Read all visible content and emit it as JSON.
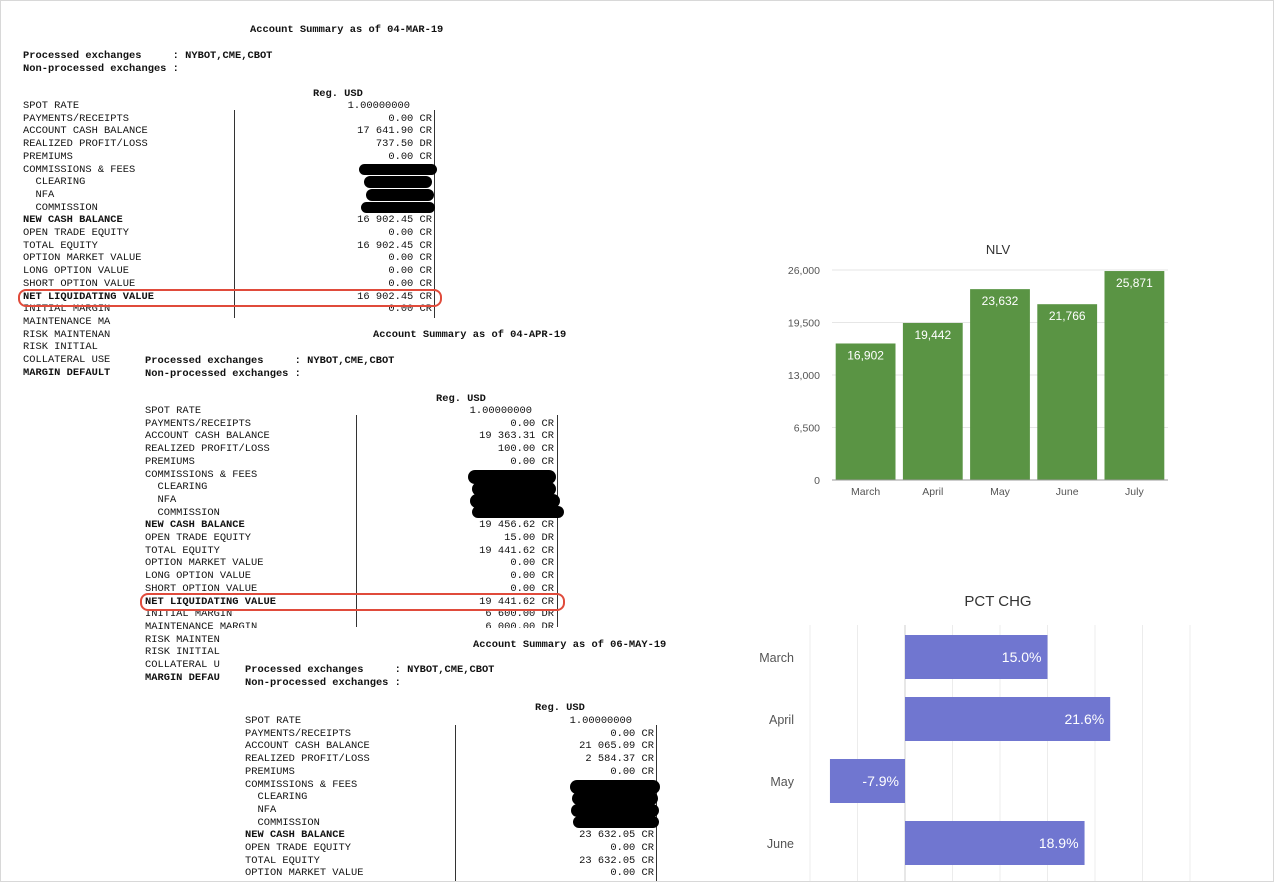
{
  "statements": [
    {
      "id": "mar",
      "title": "Account Summary as of 04-MAR-19",
      "processed": "Processed exchanges     : NYBOT,CME,CBOT",
      "nonprocessed": "Non-processed exchanges :",
      "currency_header": "Reg. USD",
      "spot_rate_value": "1.00000000",
      "rows": [
        {
          "label": "SPOT RATE",
          "value": ""
        },
        {
          "label": "PAYMENTS/RECEIPTS",
          "value": "0.00 CR"
        },
        {
          "label": "ACCOUNT CASH BALANCE",
          "value": "17 641.90 CR"
        },
        {
          "label": "REALIZED PROFIT/LOSS",
          "value": "737.50 DR"
        },
        {
          "label": "PREMIUMS",
          "value": "0.00 CR"
        },
        {
          "label": "COMMISSIONS & FEES",
          "value": ""
        },
        {
          "label": "  CLEARING",
          "value": ""
        },
        {
          "label": "  NFA",
          "value": ""
        },
        {
          "label": "  COMMISSION",
          "value": ""
        },
        {
          "label": "NEW CASH BALANCE",
          "value": "16 902.45 CR",
          "bold": true
        },
        {
          "label": "OPEN TRADE EQUITY",
          "value": "0.00 CR"
        },
        {
          "label": "TOTAL EQUITY",
          "value": "16 902.45 CR"
        },
        {
          "label": "OPTION MARKET VALUE",
          "value": "0.00 CR"
        },
        {
          "label": "LONG OPTION VALUE",
          "value": "0.00 CR"
        },
        {
          "label": "SHORT OPTION VALUE",
          "value": "0.00 CR"
        },
        {
          "label": "NET LIQUIDATING VALUE",
          "value": "16 902.45 CR",
          "bold": true
        },
        {
          "label": "INITIAL MARGIN",
          "value": "0.00 CR"
        },
        {
          "label": "MAINTENANCE MA",
          "value": ""
        },
        {
          "label": "RISK MAINTENAN",
          "value": ""
        },
        {
          "label": "RISK INITIAL",
          "value": ""
        },
        {
          "label": "COLLATERAL USE",
          "value": ""
        },
        {
          "label": "MARGIN DEFAULT",
          "value": "",
          "bold": true
        }
      ]
    },
    {
      "id": "apr",
      "title": "Account Summary as of 04-APR-19",
      "processed": "Processed exchanges     : NYBOT,CME,CBOT",
      "nonprocessed": "Non-processed exchanges :",
      "currency_header": "Reg. USD",
      "spot_rate_value": "1.00000000",
      "rows": [
        {
          "label": "SPOT RATE",
          "value": ""
        },
        {
          "label": "PAYMENTS/RECEIPTS",
          "value": "0.00 CR"
        },
        {
          "label": "ACCOUNT CASH BALANCE",
          "value": "19 363.31 CR"
        },
        {
          "label": "REALIZED PROFIT/LOSS",
          "value": "100.00 CR"
        },
        {
          "label": "PREMIUMS",
          "value": "0.00 CR"
        },
        {
          "label": "COMMISSIONS & FEES",
          "value": ""
        },
        {
          "label": "  CLEARING",
          "value": ""
        },
        {
          "label": "  NFA",
          "value": ""
        },
        {
          "label": "  COMMISSION",
          "value": ""
        },
        {
          "label": "NEW CASH BALANCE",
          "value": "19 456.62 CR",
          "bold": true
        },
        {
          "label": "OPEN TRADE EQUITY",
          "value": "15.00 DR"
        },
        {
          "label": "TOTAL EQUITY",
          "value": "19 441.62 CR"
        },
        {
          "label": "OPTION MARKET VALUE",
          "value": "0.00 CR"
        },
        {
          "label": "LONG OPTION VALUE",
          "value": "0.00 CR"
        },
        {
          "label": "SHORT OPTION VALUE",
          "value": "0.00 CR"
        },
        {
          "label": "NET LIQUIDATING VALUE",
          "value": "19 441.62 CR",
          "bold": true
        },
        {
          "label": "INITIAL MARGIN",
          "value": "6 600.00 DR"
        },
        {
          "label": "MAINTENANCE MARGIN",
          "value": "6 000.00 DR"
        },
        {
          "label": "RISK MAINTEN",
          "value": ""
        },
        {
          "label": "RISK INITIAL",
          "value": ""
        },
        {
          "label": "COLLATERAL U",
          "value": ""
        },
        {
          "label": "MARGIN DEFAU",
          "value": "",
          "bold": true
        }
      ]
    },
    {
      "id": "may",
      "title": "Account Summary as of 06-MAY-19",
      "processed": "Processed exchanges     : NYBOT,CME,CBOT",
      "nonprocessed": "Non-processed exchanges :",
      "currency_header": "Reg. USD",
      "spot_rate_value": "1.00000000",
      "rows": [
        {
          "label": "SPOT RATE",
          "value": ""
        },
        {
          "label": "PAYMENTS/RECEIPTS",
          "value": "0.00 CR"
        },
        {
          "label": "ACCOUNT CASH BALANCE",
          "value": "21 065.09 CR"
        },
        {
          "label": "REALIZED PROFIT/LOSS",
          "value": "2 584.37 CR"
        },
        {
          "label": "PREMIUMS",
          "value": "0.00 CR"
        },
        {
          "label": "COMMISSIONS & FEES",
          "value": ""
        },
        {
          "label": "  CLEARING",
          "value": ""
        },
        {
          "label": "  NFA",
          "value": ""
        },
        {
          "label": "  COMMISSION",
          "value": ""
        },
        {
          "label": "NEW CASH BALANCE",
          "value": "23 632.05 CR",
          "bold": true
        },
        {
          "label": "OPEN TRADE EQUITY",
          "value": "0.00 CR"
        },
        {
          "label": "TOTAL EQUITY",
          "value": "23 632.05 CR"
        },
        {
          "label": "OPTION MARKET VALUE",
          "value": "0.00 CR"
        }
      ]
    }
  ],
  "chart_data": [
    {
      "type": "bar",
      "title": "NLV",
      "categories": [
        "March",
        "April",
        "May",
        "June",
        "July"
      ],
      "values": [
        16902,
        19442,
        23632,
        21766,
        25871
      ],
      "value_labels": [
        "16,902",
        "19,442",
        "23,632",
        "21,766",
        "25,871"
      ],
      "yticks": [
        "0",
        "6,500",
        "13,000",
        "19,500",
        "26,000"
      ],
      "ylim": [
        0,
        26000
      ],
      "color": "#5a9444",
      "grid": true
    },
    {
      "type": "bar",
      "orientation": "horizontal",
      "title": "PCT CHG",
      "categories": [
        "March",
        "April",
        "May",
        "June"
      ],
      "values": [
        15.0,
        21.6,
        -7.9,
        18.9
      ],
      "value_labels": [
        "15.0%",
        "21.6%",
        "-7.9%",
        "18.9%"
      ],
      "xlim": [
        -10,
        30
      ],
      "color": "#7076d0",
      "grid": true
    }
  ]
}
